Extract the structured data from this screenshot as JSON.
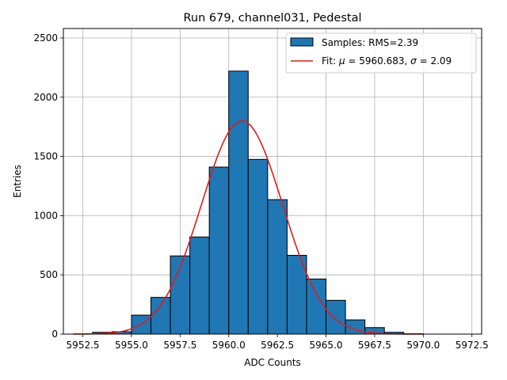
{
  "chart_data": {
    "type": "bar",
    "title": "Run 679, channel031, Pedestal",
    "xlabel": "ADC Counts",
    "ylabel": "Entries",
    "xlim": [
      5951.5,
      5973.0
    ],
    "ylim": [
      0,
      2580
    ],
    "xticks": [
      5952.5,
      5955.0,
      5957.5,
      5960.0,
      5962.5,
      5965.0,
      5967.5,
      5970.0,
      5972.5
    ],
    "xtick_labels": [
      "5952.5",
      "5955.0",
      "5957.5",
      "5960.0",
      "5962.5",
      "5965.0",
      "5967.5",
      "5970.0",
      "5972.5"
    ],
    "yticks": [
      0,
      500,
      1000,
      1500,
      2000,
      2500
    ],
    "ytick_labels": [
      "0",
      "500",
      "1000",
      "1500",
      "2000",
      "2500"
    ],
    "grid": true,
    "legend_position": "top-right",
    "histogram": {
      "name": "Samples: RMS=2.39",
      "bin_edges": [
        5953,
        5954,
        5955,
        5956,
        5957,
        5958,
        5959,
        5960,
        5961,
        5962,
        5963,
        5964,
        5965,
        5966,
        5967,
        5968,
        5969,
        5970,
        5971,
        5972
      ],
      "counts": [
        15,
        20,
        160,
        310,
        660,
        820,
        1410,
        2220,
        1475,
        1135,
        665,
        465,
        285,
        120,
        55,
        15,
        3,
        0,
        0
      ],
      "color": "#1f77b4"
    },
    "fit": {
      "type": "gaussian",
      "mu": 5960.683,
      "sigma": 2.09,
      "amplitude": 1800,
      "x_range": [
        5952,
        5970
      ],
      "color": "#e41a1c",
      "legend_prefix": "Fit: ",
      "mu_symbol": "μ",
      "mu_text": " = 5960.683, ",
      "sigma_symbol": "σ",
      "sigma_text": " = 2.09"
    }
  }
}
